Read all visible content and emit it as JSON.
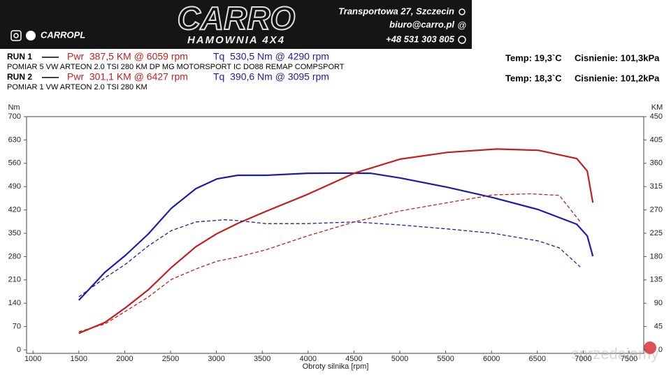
{
  "header": {
    "logo": "CARRO",
    "logo_sub": "HAMOWNIA 4X4",
    "brand": "CARROPL",
    "address": "Transportowa 27, Szczecin",
    "email": "biuro@carro.pl",
    "phone": "+48 531 303 805"
  },
  "watermark": "sprzedajemy",
  "chart_data": {
    "type": "line",
    "runs": [
      {
        "label": "RUN 1",
        "power": "Pwr  387,5 KM @ 6059 rpm",
        "torque": "Tq  530,5 Nm @ 4290 rpm",
        "desc": "POMIAR 5 VW ARTEON 2.0 TSI 280 KM DP MG MOTORSPORT IC DO88 REMAP COMPSPORT",
        "temp": "Temp: 19,3`C",
        "pressure": "Cisnienie: 101,3kPa"
      },
      {
        "label": "RUN 2",
        "power": "Pwr  301,1 KM @ 6427 rpm",
        "torque": "Tq  390,6 Nm @ 3095 rpm",
        "desc": "POMIAR 1 VW ARTEON 2.0 TSI 280 KM",
        "temp": "Temp: 18,3`C",
        "pressure": "Cisnienie: 101,2kPa"
      }
    ],
    "ylabel": "Nm",
    "y2label": "KM",
    "xlabel": "Obroty silnika [rpm]",
    "xlim": [
      930,
      7660
    ],
    "xticks": [
      1000,
      1500,
      2000,
      2500,
      3000,
      3500,
      4000,
      4500,
      5000,
      5500,
      6000,
      6500,
      7000,
      7500
    ],
    "ylim": [
      0,
      700
    ],
    "yticks": [
      0,
      70,
      140,
      210,
      280,
      350,
      420,
      490,
      560,
      630,
      700
    ],
    "y2lim": [
      0,
      450
    ],
    "y2ticks": [
      0,
      45,
      90,
      135,
      180,
      225,
      270,
      315,
      360,
      405,
      450
    ],
    "grid": false,
    "series": [
      {
        "color": "#1c1ca8",
        "dash": false,
        "x": [
          1500,
          1785,
          2014,
          2258,
          2509,
          2776,
          3005,
          3233,
          3538,
          3995,
          4290,
          4681,
          5002,
          5520,
          6015,
          6511,
          6930,
          7044,
          7105
        ],
        "values": [
          149,
          233,
          285,
          348,
          425,
          484,
          513,
          524,
          524,
          530,
          530.5,
          530,
          516,
          488,
          457,
          421,
          377,
          342,
          281
        ]
      },
      {
        "color": "#c41e1e",
        "dash": false,
        "axis": "y2",
        "x": [
          1500,
          1785,
          2014,
          2258,
          2509,
          2776,
          3005,
          3233,
          3538,
          3995,
          4506,
          5002,
          5520,
          6059,
          6511,
          6930,
          7044,
          7105
        ],
        "values": [
          32,
          53,
          82,
          116,
          159,
          199,
          224,
          244,
          267,
          300,
          341,
          368,
          381,
          387.5,
          385,
          369,
          345,
          284
        ]
      },
      {
        "color": "#1c1ca8",
        "dash": true,
        "x": [
          1500,
          1785,
          2014,
          2258,
          2509,
          2776,
          3095,
          3233,
          3538,
          3995,
          4506,
          5002,
          5520,
          6015,
          6511,
          6739,
          6968
        ],
        "values": [
          159,
          216,
          258,
          312,
          358,
          384,
          390.6,
          388,
          379,
          379,
          384,
          375,
          363,
          350,
          327,
          306,
          249
        ]
      },
      {
        "color": "#c41e1e",
        "dash": true,
        "axis": "y2",
        "x": [
          1500,
          1785,
          2014,
          2258,
          2509,
          2776,
          3005,
          3233,
          3538,
          3995,
          4506,
          5002,
          5520,
          6015,
          6427,
          6739,
          6968
        ],
        "values": [
          35,
          50,
          75,
          102,
          136,
          156,
          171,
          179,
          193,
          220,
          247,
          268,
          284,
          299,
          301.1,
          298,
          247
        ]
      }
    ]
  }
}
